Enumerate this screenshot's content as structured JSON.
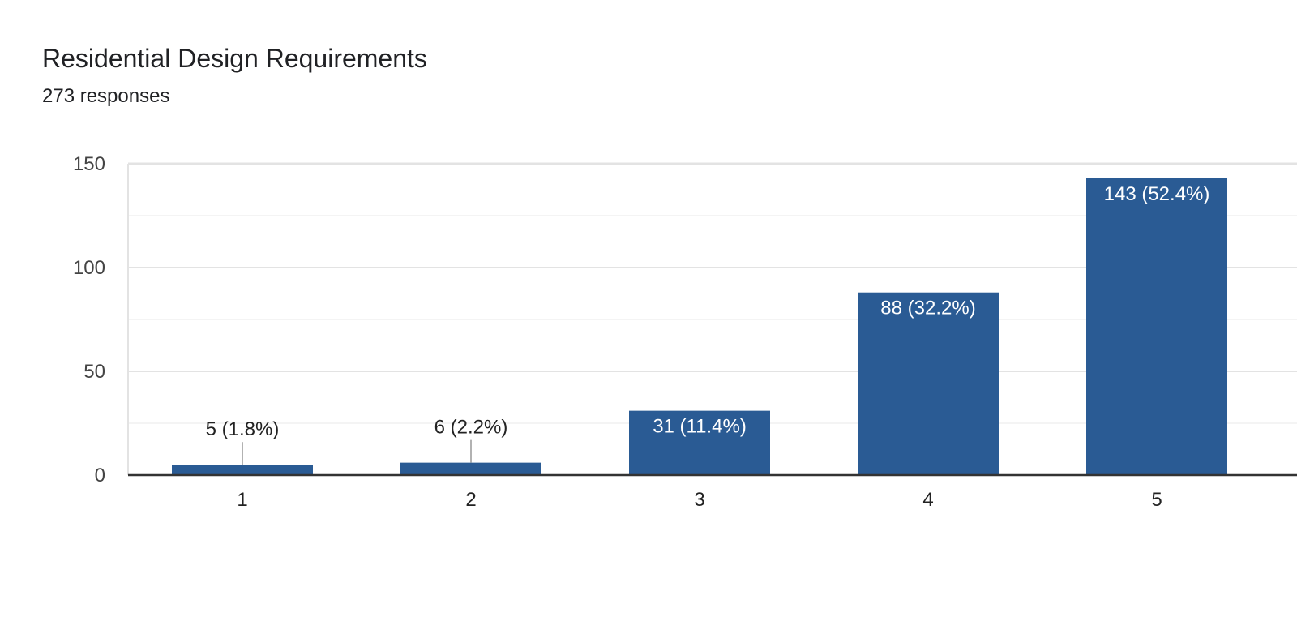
{
  "header": {
    "title": "Residential Design Requirements",
    "subtitle": "273 responses"
  },
  "colors": {
    "bar": "#2a5b94",
    "grid_major": "#e3e3e3",
    "grid_minor": "#f0f0f0",
    "axis": "#333333",
    "label_inside": "#ffffff",
    "label_outside": "#222222",
    "leader": "#999999"
  },
  "chart_data": {
    "type": "bar",
    "title": "Residential Design Requirements",
    "subtitle": "273 responses",
    "categories": [
      "1",
      "2",
      "3",
      "4",
      "5"
    ],
    "values": [
      5,
      6,
      31,
      88,
      143
    ],
    "data_labels": [
      "5 (1.8%)",
      "6 (2.2%)",
      "31 (11.4%)",
      "88 (32.2%)",
      "143 (52.4%)"
    ],
    "ylim": [
      0,
      150
    ],
    "yticks": [
      0,
      50,
      100,
      150
    ],
    "grid": true,
    "xlabel": "",
    "ylabel": ""
  }
}
